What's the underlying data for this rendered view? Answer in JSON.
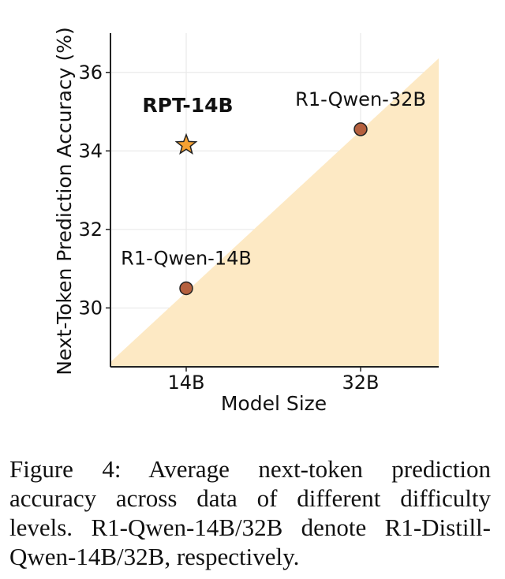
{
  "chart_data": {
    "type": "scatter",
    "xlabel": "Model Size",
    "ylabel": "Next-Token Prediction Accuracy (%)",
    "x_categories": [
      "14B",
      "32B"
    ],
    "ylim": [
      28.5,
      37
    ],
    "yticks": [
      30,
      32,
      34,
      36
    ],
    "grid": true,
    "points": [
      {
        "label": "R1-Qwen-14B",
        "x": "14B",
        "y": 30.5,
        "marker": "circle",
        "color": "#b5603e",
        "bold": false
      },
      {
        "label": "R1-Qwen-32B",
        "x": "32B",
        "y": 34.55,
        "marker": "circle",
        "color": "#b5603e",
        "bold": false
      },
      {
        "label": "RPT-14B",
        "x": "14B",
        "y": 34.15,
        "marker": "star",
        "color": "#f5a132",
        "bold": true
      }
    ],
    "shaded_region_color": "#fde9c4"
  },
  "caption": {
    "text": "Figure 4: Average next-token prediction accuracy across data of different difficulty levels. R1-Qwen-14B/32B denote R1-Distill-Qwen-14B/32B, respectively."
  }
}
